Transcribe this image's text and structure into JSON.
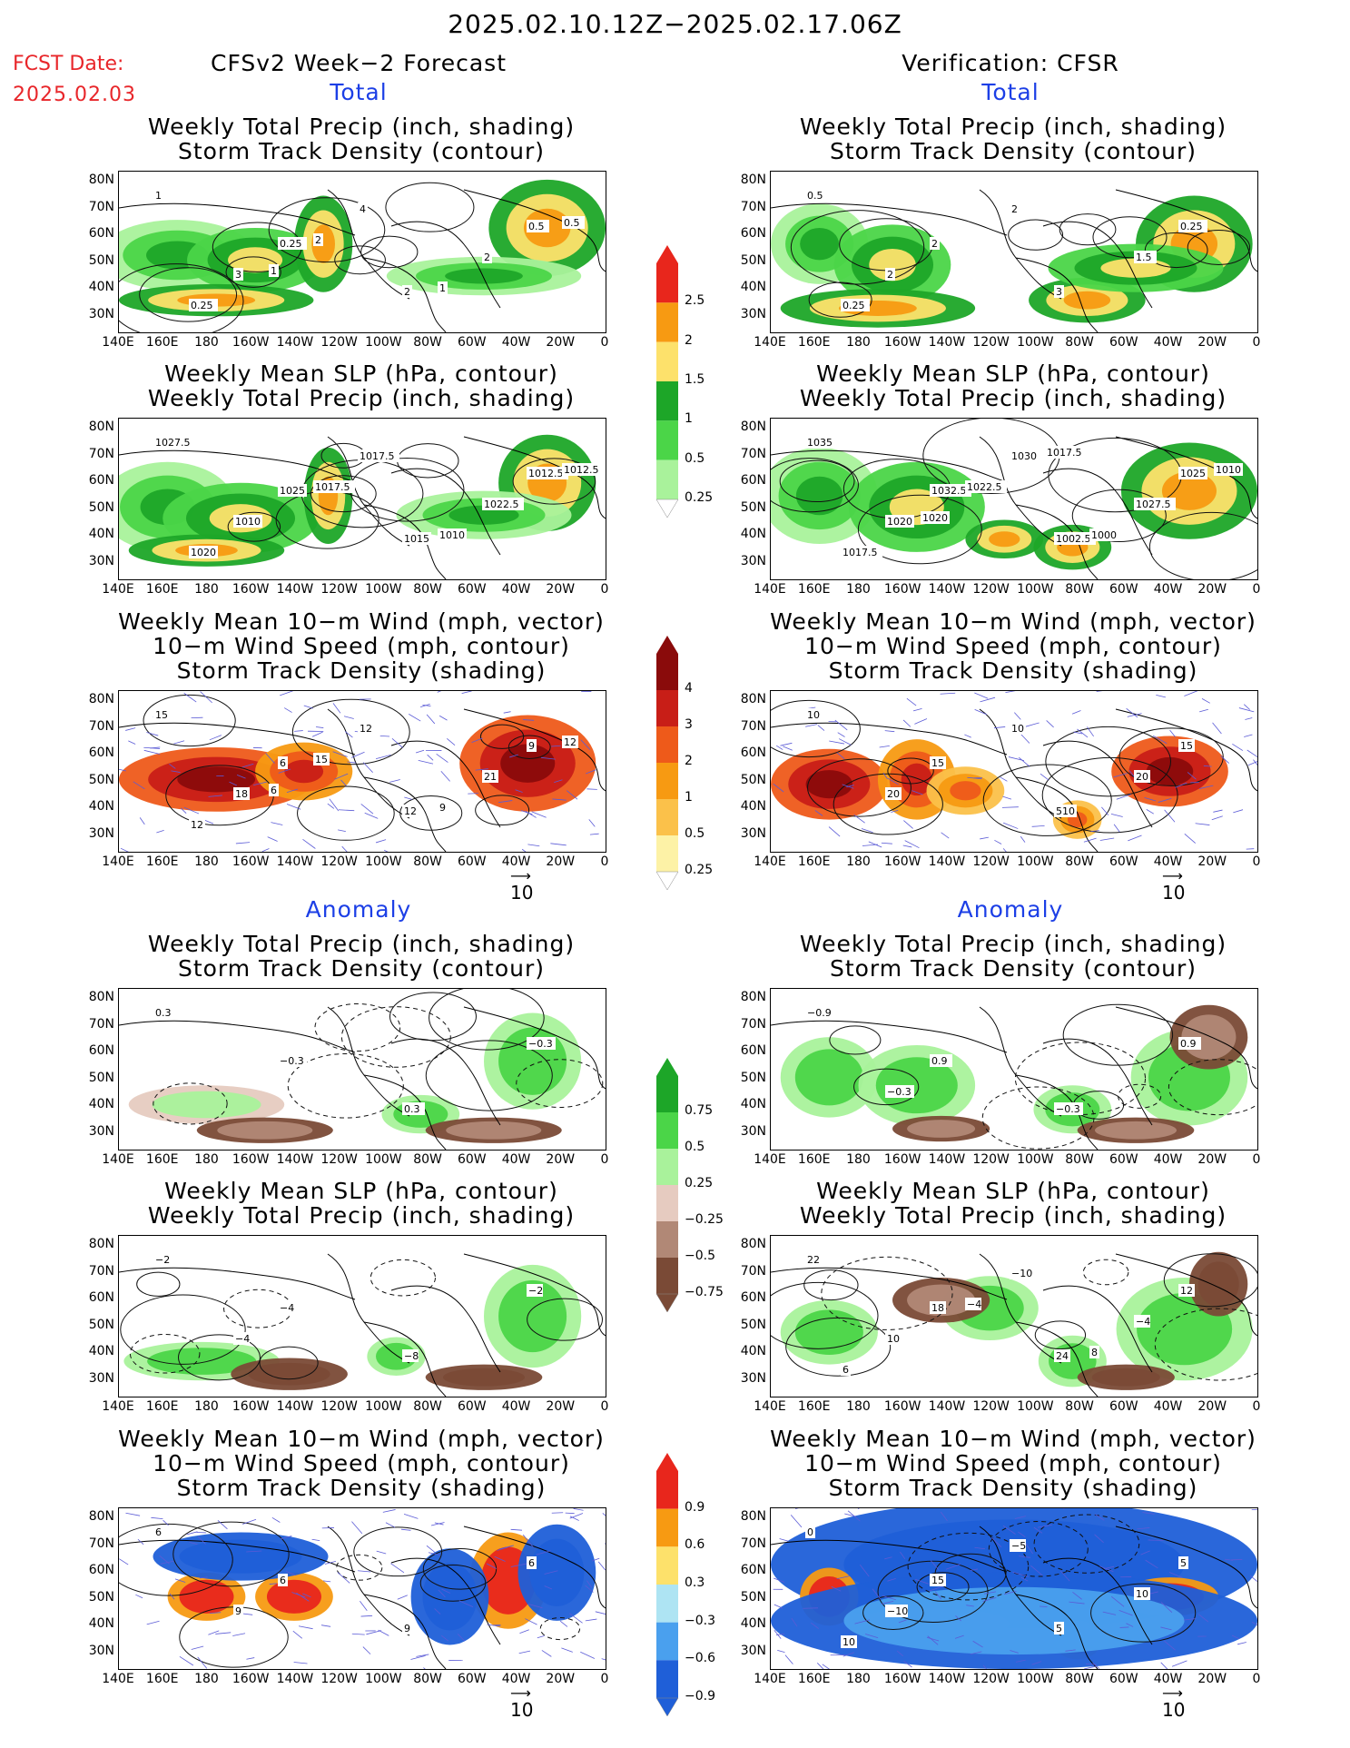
{
  "header": {
    "title": "2025.02.10.12Z−2025.02.17.06Z",
    "fcst_label": "FCST Date:",
    "fcst_date": "2025.02.03",
    "left_heading": "CFSv2 Week−2 Forecast",
    "right_heading": "Verification: CFSR"
  },
  "sections": {
    "total": "Total",
    "anomaly": "Anomaly"
  },
  "panel_titles": {
    "precip_storm": [
      "Weekly Total Precip (inch, shading)",
      "Storm Track Density (contour)"
    ],
    "slp_precip": [
      "Weekly Mean SLP (hPa, contour)",
      "Weekly Total Precip (inch, shading)"
    ],
    "wind": [
      "Weekly Mean 10−m Wind (mph, vector)",
      "10−m Wind Speed (mph, contour)",
      "Storm Track Density (shading)"
    ]
  },
  "axes": {
    "y_ticks": [
      "80N",
      "70N",
      "60N",
      "50N",
      "40N",
      "30N"
    ],
    "x_ticks": [
      "140E",
      "160E",
      "180",
      "160W",
      "140W",
      "120W",
      "100W",
      "80W",
      "60W",
      "40W",
      "20W",
      "0"
    ]
  },
  "vector_reference": "10",
  "colorbars": {
    "total_precip": {
      "labels": [
        "2.5",
        "2",
        "1.5",
        "1",
        "0.5",
        "0.25"
      ],
      "colors": [
        "#e8261c",
        "#f79a12",
        "#fde16b",
        "#1da628",
        "#4bd548",
        "#a9f29b"
      ]
    },
    "total_storm": {
      "labels": [
        "4",
        "3",
        "2",
        "1",
        "0.5",
        "0.25"
      ],
      "colors": [
        "#8a0b0b",
        "#c81e17",
        "#ee5a1a",
        "#f79a12",
        "#fbc14a",
        "#fdf2a6"
      ]
    },
    "anom_precip": {
      "labels": [
        "0.75",
        "0.5",
        "0.25",
        "−0.25",
        "−0.5",
        "−0.75"
      ],
      "colors": [
        "#1da628",
        "#4bd548",
        "#a9f29b",
        "#e6cbc0",
        "#b18876",
        "#7a4a36"
      ]
    },
    "anom_storm": {
      "labels": [
        "0.9",
        "0.6",
        "0.3",
        "−0.3",
        "−0.6",
        "−0.9"
      ],
      "colors": [
        "#e8261c",
        "#f79a12",
        "#fde16b",
        "#aee4f3",
        "#4aa0ee",
        "#1f5fd8"
      ]
    }
  },
  "map_labels": {
    "fc_precip": [
      "1",
      "0.25",
      "2",
      "0.5",
      "3",
      "4",
      "2",
      "0.25",
      "2",
      "1",
      "0.5",
      "1"
    ],
    "ob_precip": [
      "0.5",
      "2",
      "3",
      "0.25",
      "2",
      "2",
      "1.5",
      "0.25"
    ],
    "fc_slp": [
      "1027.5",
      "1025",
      "1015",
      "1012.5",
      "1010",
      "1017.5",
      "1022.5",
      "1020",
      "1017.5",
      "1010",
      "1012.5"
    ],
    "ob_slp": [
      "1035",
      "1032.5",
      "1002.5",
      "1025",
      "1020",
      "1030",
      "1027.5",
      "1017.5",
      "1022.5",
      "1000",
      "1010",
      "1020",
      "1017.5"
    ],
    "fc_wind": [
      "15",
      "6",
      "12",
      "9",
      "18",
      "12",
      "21",
      "12",
      "15",
      "9",
      "12",
      "6"
    ],
    "ob_wind": [
      "10",
      "15",
      "510",
      "15",
      "20",
      "10",
      "20"
    ],
    "fc_anom_precip": [
      "0.3",
      "−0.3",
      "0.3",
      "−0.3"
    ],
    "ob_anom_precip": [
      "−0.9",
      "0.9",
      "−0.3",
      "0.9",
      "−0.3"
    ],
    "fc_anom_slp": [
      "−2",
      "−4",
      "−8",
      "−2",
      "−4"
    ],
    "ob_anom_slp": [
      "22",
      "18",
      "24",
      "12",
      "10",
      "−10",
      "−4",
      "6",
      "−4",
      "8"
    ],
    "fc_anom_wind": [
      "6",
      "6",
      "9",
      "6",
      "9"
    ],
    "ob_anom_wind": [
      "0",
      "15",
      "5",
      "5",
      "−10",
      "−5",
      "10",
      "10"
    ]
  }
}
